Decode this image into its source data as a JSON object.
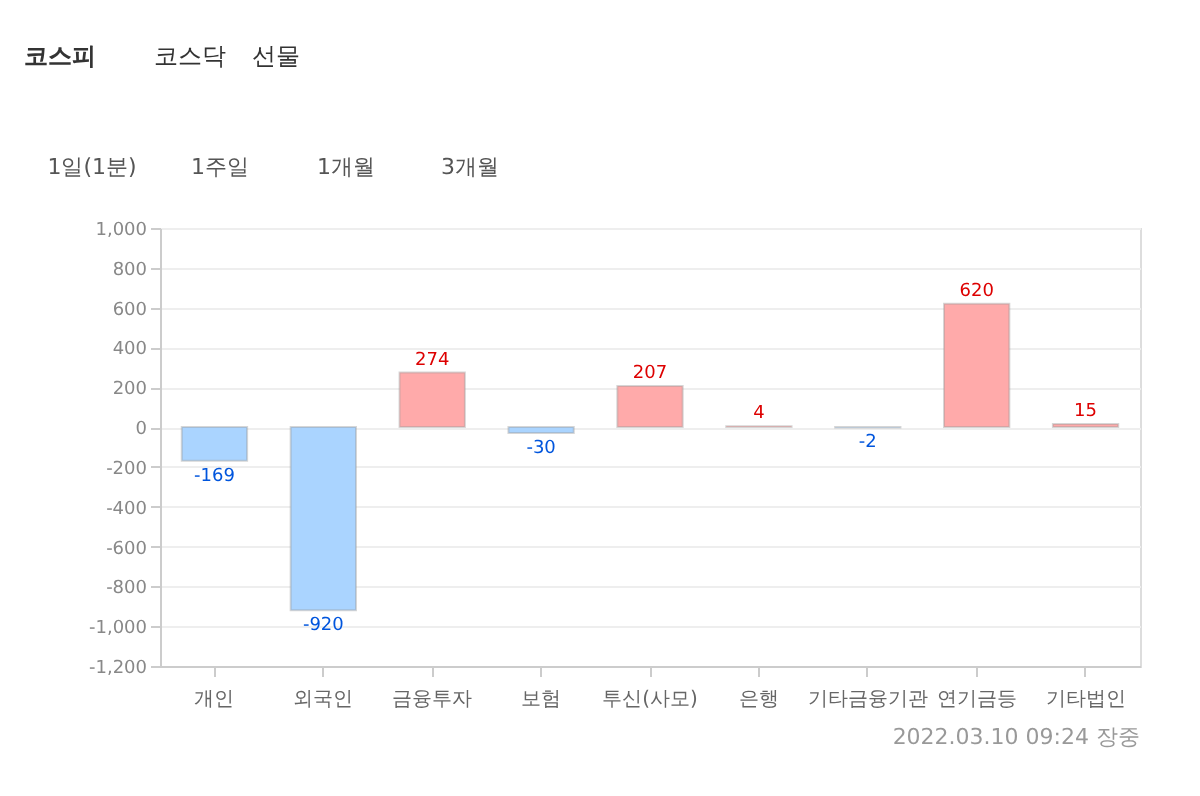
{
  "chart_data": {
    "type": "bar",
    "categories": [
      "개인",
      "외국인",
      "금융투자",
      "보험",
      "투신(사모)",
      "은행",
      "기타금융기관",
      "연기금등",
      "기타법인"
    ],
    "values": [
      -169,
      -920,
      274,
      -30,
      207,
      4,
      -2,
      620,
      15
    ],
    "colors": [
      "#aad4ff",
      "#aad4ff",
      "#ffaaaa",
      "#aad4ff",
      "#ffaaaa",
      "#ffaaaa",
      "#aad4ff",
      "#ffaaaa",
      "#ffaaaa"
    ],
    "ylim": [
      -1200,
      1000
    ],
    "yticks": [
      {
        "value": -1200,
        "label": "-1,200"
      },
      {
        "value": -1000,
        "label": "-1,000"
      },
      {
        "value": -800,
        "label": "-800"
      },
      {
        "value": -600,
        "label": "-600"
      },
      {
        "value": -400,
        "label": "-400"
      },
      {
        "value": -200,
        "label": "-200"
      },
      0,
      200,
      400,
      600,
      800,
      {
        "value": 1000,
        "label": "1,000"
      }
    ],
    "grid": "y",
    "data_labels": true,
    "annotations": [
      "코스피",
      "코스닥",
      "선물",
      "1일(1분)",
      "1주일",
      "1개월",
      "3개월",
      "2022.03.10 09:24 장중"
    ]
  }
}
